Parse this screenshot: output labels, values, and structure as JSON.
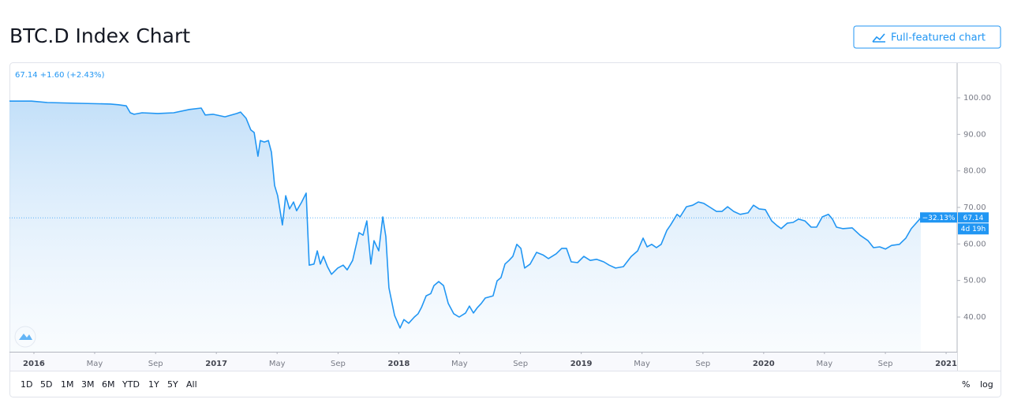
{
  "chart_data": {
    "type": "line",
    "title": "BTC.D Index Chart",
    "legend_text": "67.14 +1.60 (+2.43%)",
    "x": [
      2015.866,
      2015.987,
      2016.074,
      2016.247,
      2016.42,
      2016.463,
      2016.506,
      2016.528,
      2016.549,
      2016.593,
      2016.679,
      2016.766,
      2016.852,
      2016.917,
      2016.939,
      2016.982,
      2017.047,
      2017.112,
      2017.133,
      2017.163,
      2017.189,
      2017.207,
      2017.228,
      2017.241,
      2017.263,
      2017.285,
      2017.302,
      2017.319,
      2017.336,
      2017.362,
      2017.38,
      2017.401,
      2017.423,
      2017.44,
      2017.466,
      2017.492,
      2017.509,
      2017.535,
      2017.553,
      2017.57,
      2017.587,
      2017.609,
      2017.631,
      2017.665,
      2017.695,
      2017.717,
      2017.747,
      2017.782,
      2017.804,
      2017.825,
      2017.847,
      2017.864,
      2017.89,
      2017.912,
      2017.929,
      2017.946,
      2017.977,
      2018.007,
      2018.028,
      2018.054,
      2018.085,
      2018.106,
      2018.124,
      2018.15,
      2018.175,
      2018.193,
      2018.219,
      2018.245,
      2018.271,
      2018.301,
      2018.331,
      2018.366,
      2018.387,
      2018.409,
      2018.431,
      2018.452,
      2018.474,
      2018.517,
      2018.539,
      2018.56,
      2018.582,
      2018.604,
      2018.625,
      2018.647,
      2018.669,
      2018.69,
      2018.72,
      2018.755,
      2018.79,
      2018.82,
      2018.863,
      2018.893,
      2018.919,
      2018.945,
      2018.98,
      2019.014,
      2019.049,
      2019.084,
      2019.123,
      2019.153,
      2019.188,
      2019.231,
      2019.274,
      2019.309,
      2019.339,
      2019.361,
      2019.386,
      2019.412,
      2019.438,
      2019.469,
      2019.49,
      2019.525,
      2019.542,
      2019.577,
      2019.611,
      2019.642,
      2019.672,
      2019.707,
      2019.741,
      2019.771,
      2019.802,
      2019.836,
      2019.871,
      2019.914,
      2019.944,
      2019.975,
      2020.009,
      2020.044,
      2020.074,
      2020.096,
      2020.13,
      2020.161,
      2020.191,
      2020.226,
      2020.26,
      2020.29,
      2020.321,
      2020.355,
      2020.377,
      2020.399,
      2020.433,
      2020.485,
      2020.528,
      2020.572,
      2020.602,
      2020.636,
      2020.667,
      2020.701,
      2020.744,
      2020.779,
      2020.809,
      2020.861
    ],
    "series": [
      {
        "color": "#2196f3",
        "values": [
          99.1,
          99.1,
          98.7,
          98.5,
          98.3,
          98.1,
          97.8,
          95.9,
          95.5,
          95.9,
          95.7,
          95.9,
          96.8,
          97.2,
          95.3,
          95.5,
          94.8,
          95.7,
          96.1,
          94.4,
          91.2,
          90.5,
          84.0,
          88.3,
          87.9,
          88.3,
          85.1,
          76.0,
          73.2,
          65.2,
          73.2,
          69.6,
          71.5,
          69.1,
          71.3,
          73.9,
          54.2,
          54.5,
          58.1,
          54.5,
          56.6,
          53.8,
          51.7,
          53.4,
          54.2,
          52.9,
          55.5,
          63.1,
          62.4,
          66.3,
          54.5,
          60.9,
          58.1,
          67.4,
          62.0,
          48.0,
          40.4,
          37.0,
          39.3,
          38.3,
          40.0,
          40.9,
          42.6,
          45.8,
          46.4,
          48.6,
          49.7,
          48.6,
          43.7,
          40.9,
          40.0,
          41.1,
          43.0,
          41.1,
          42.6,
          43.7,
          45.2,
          45.8,
          49.9,
          50.8,
          54.5,
          55.5,
          56.6,
          59.9,
          58.8,
          53.4,
          54.5,
          57.7,
          57.0,
          56.0,
          57.3,
          58.8,
          58.8,
          55.1,
          54.9,
          56.6,
          55.5,
          55.8,
          55.1,
          54.2,
          53.4,
          53.8,
          56.6,
          58.1,
          61.6,
          59.2,
          59.9,
          59.0,
          59.9,
          63.7,
          65.2,
          68.1,
          67.4,
          70.2,
          70.6,
          71.5,
          71.1,
          70.0,
          68.9,
          68.9,
          70.2,
          68.9,
          68.1,
          68.5,
          70.6,
          69.6,
          69.4,
          66.3,
          65.0,
          64.2,
          65.7,
          65.9,
          66.8,
          66.3,
          64.6,
          64.6,
          67.4,
          68.1,
          66.8,
          64.6,
          64.2,
          64.4,
          62.4,
          60.9,
          59.0,
          59.2,
          58.6,
          59.6,
          59.9,
          61.6,
          64.2,
          67.14
        ]
      }
    ],
    "xlim": [
      2015.866,
      2021.056
    ],
    "ylim": [
      30.5,
      109.5
    ],
    "xticks": [
      {
        "value": 2016,
        "label": "2016"
      },
      {
        "value": 2016.333,
        "label": "May"
      },
      {
        "value": 2016.667,
        "label": "Sep"
      },
      {
        "value": 2017,
        "label": "2017"
      },
      {
        "value": 2017.333,
        "label": "May"
      },
      {
        "value": 2017.667,
        "label": "Sep"
      },
      {
        "value": 2018,
        "label": "2018"
      },
      {
        "value": 2018.333,
        "label": "May"
      },
      {
        "value": 2018.667,
        "label": "Sep"
      },
      {
        "value": 2019,
        "label": "2019"
      },
      {
        "value": 2019.333,
        "label": "May"
      },
      {
        "value": 2019.667,
        "label": "Sep"
      },
      {
        "value": 2020,
        "label": "2020"
      },
      {
        "value": 2020.333,
        "label": "May"
      },
      {
        "value": 2020.667,
        "label": "Sep"
      },
      {
        "value": 2021,
        "label": "2021"
      }
    ],
    "yticks": [
      {
        "value": 40,
        "label": "40.00"
      },
      {
        "value": 50,
        "label": "50.00"
      },
      {
        "value": 60,
        "label": "60.00"
      },
      {
        "value": 70,
        "label": "70.00"
      },
      {
        "value": 80,
        "label": "80.00"
      },
      {
        "value": 90,
        "label": "90.00"
      },
      {
        "value": 100,
        "label": "100.00"
      }
    ],
    "change_label": "−32.13%",
    "countdown": "4d 19h"
  },
  "button": "Full-featured chart",
  "toolbar": {
    "ranges": [
      "1D",
      "5D",
      "1M",
      "3M",
      "6M",
      "YTD",
      "1Y",
      "5Y",
      "All"
    ],
    "options": [
      "%",
      "log"
    ]
  }
}
